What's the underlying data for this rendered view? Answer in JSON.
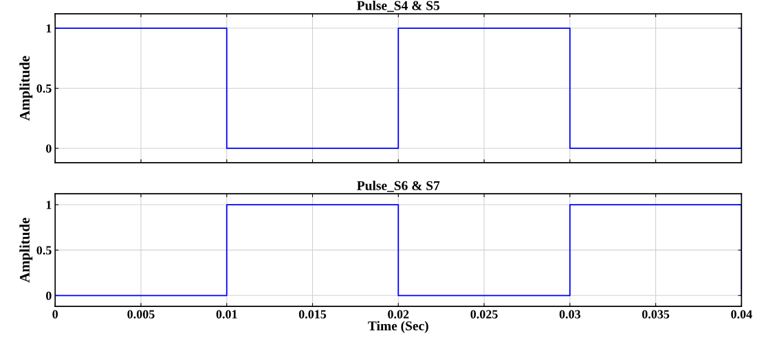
{
  "chart_data": [
    {
      "type": "step",
      "title": "Pulse_S4 & S5",
      "ylabel": "Amplitude",
      "x": [
        0,
        0.01,
        0.02,
        0.03,
        0.04
      ],
      "series": [
        {
          "color": "#0000ff",
          "values": [
            1,
            0,
            1,
            0,
            1
          ]
        }
      ],
      "xlim": [
        0,
        0.04
      ],
      "xticks": [
        0,
        0.005,
        0.01,
        0.015,
        0.02,
        0.025,
        0.03,
        0.035,
        0.04
      ],
      "ylim": [
        -0.12,
        1.12
      ],
      "yticks": [
        0,
        0.5,
        1
      ],
      "grid": true,
      "tick_labels": "y"
    },
    {
      "type": "step",
      "title": "Pulse_S6 & S7",
      "ylabel": "Amplitude",
      "xlabel": "Time (Sec)",
      "x": [
        0,
        0.01,
        0.02,
        0.03,
        0.04
      ],
      "series": [
        {
          "color": "#0000ff",
          "values": [
            0,
            1,
            0,
            1,
            0
          ]
        }
      ],
      "xlim": [
        0,
        0.04
      ],
      "xticks": [
        0,
        0.005,
        0.01,
        0.015,
        0.02,
        0.025,
        0.03,
        0.035,
        0.04
      ],
      "ylim": [
        -0.12,
        1.12
      ],
      "yticks": [
        0,
        0.5,
        1
      ],
      "grid": true
    }
  ]
}
